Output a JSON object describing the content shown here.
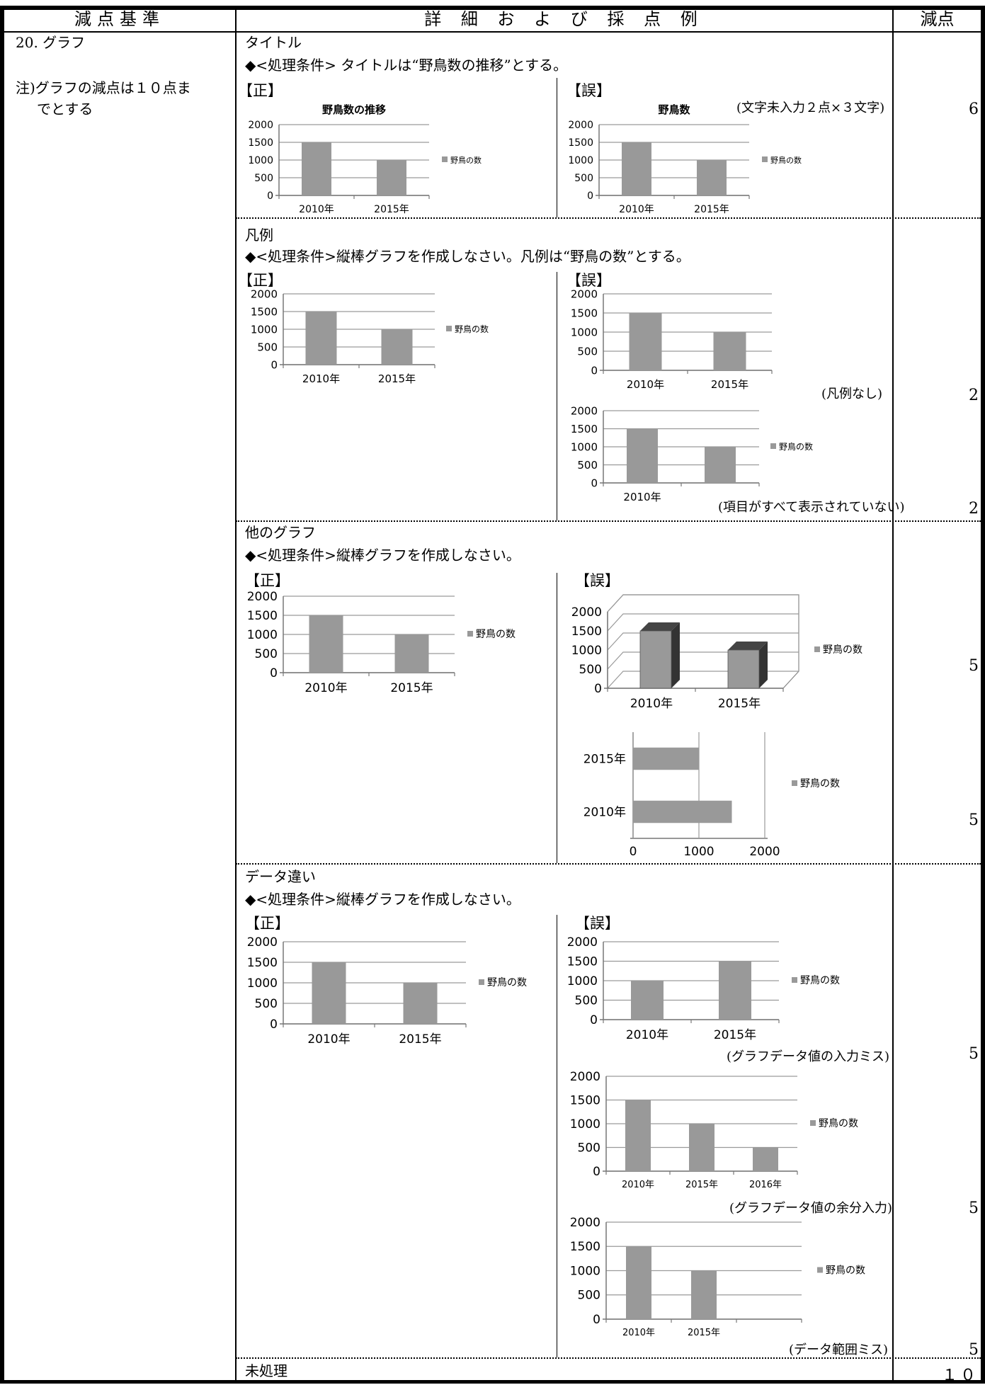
{
  "header": {
    "col1": "減点基準",
    "col2": "詳 細 お よ び 採 点 例",
    "col3": "減点"
  },
  "left": {
    "item": "20. グラフ",
    "note1": "注)グラフの減点は１０点ま",
    "note2": "でとする"
  },
  "labels": {
    "correct": "【正】",
    "wrong": "【誤】"
  },
  "sections": [
    {
      "title": "タイトル",
      "condition": "◆<処理条件> タイトルは“野鳥数の推移”とする。",
      "wrong_note": "(文字未入力２点×３文字)",
      "scores": [
        "6"
      ]
    },
    {
      "title": "凡例",
      "condition": "◆<処理条件>縦棒グラフを作成しなさい。凡例は“野鳥の数”とする。",
      "notes": [
        "(凡例なし)",
        "(項目がすべて表示されていない)"
      ],
      "scores": [
        "2",
        "2"
      ]
    },
    {
      "title": "他のグラフ",
      "condition": "◆<処理条件>縦棒グラフを作成しなさい。",
      "scores": [
        "5",
        "5"
      ]
    },
    {
      "title": "データ違い",
      "condition": "◆<処理条件>縦棒グラフを作成しなさい。",
      "notes": [
        "(グラフデータ値の入力ミス)",
        "(グラフデータ値の余分入力)",
        "(データ範囲ミス)"
      ],
      "scores": [
        "5",
        "5",
        "5"
      ]
    },
    {
      "title": "未処理",
      "scores": [
        "１０"
      ]
    }
  ],
  "chart_data": [
    {
      "id": "title-correct",
      "type": "bar",
      "title": "野鳥数の推移",
      "categories": [
        "2010年",
        "2015年"
      ],
      "series": [
        {
          "name": "野鳥の数",
          "values": [
            1500,
            1000
          ]
        }
      ],
      "ylim": [
        0,
        2000
      ],
      "yticks": [
        "2000",
        "1500",
        "1000",
        "500",
        "0"
      ],
      "legend": "right"
    },
    {
      "id": "title-wrong",
      "type": "bar",
      "title": "野鳥数",
      "categories": [
        "2010年",
        "2015年"
      ],
      "series": [
        {
          "name": "野鳥の数",
          "values": [
            1500,
            1000
          ]
        }
      ],
      "ylim": [
        0,
        2000
      ],
      "yticks": [
        "2000",
        "1500",
        "1000",
        "500",
        "0"
      ],
      "legend": "right"
    },
    {
      "id": "legend-correct",
      "type": "bar",
      "categories": [
        "2010年",
        "2015年"
      ],
      "series": [
        {
          "name": "野鳥の数",
          "values": [
            1500,
            1000
          ]
        }
      ],
      "ylim": [
        0,
        2000
      ],
      "yticks": [
        "2000",
        "1500",
        "1000",
        "500",
        "0"
      ],
      "legend": "right"
    },
    {
      "id": "legend-wrong-1",
      "type": "bar",
      "categories": [
        "2010年",
        "2015年"
      ],
      "series": [
        {
          "values": [
            1500,
            1000
          ]
        }
      ],
      "ylim": [
        0,
        2000
      ],
      "yticks": [
        "2000",
        "1500",
        "1000",
        "500",
        "0"
      ],
      "legend": "none"
    },
    {
      "id": "legend-wrong-2",
      "type": "bar",
      "categories": [
        "2010年",
        ""
      ],
      "series": [
        {
          "name": "野鳥の数",
          "values": [
            1500,
            1000
          ]
        }
      ],
      "ylim": [
        0,
        2000
      ],
      "yticks": [
        "2000",
        "1500",
        "1000",
        "500",
        "0"
      ],
      "legend": "right"
    },
    {
      "id": "other-correct",
      "type": "bar",
      "categories": [
        "2010年",
        "2015年"
      ],
      "series": [
        {
          "name": "野鳥の数",
          "values": [
            1500,
            1000
          ]
        }
      ],
      "ylim": [
        0,
        2000
      ],
      "yticks": [
        "2000",
        "1500",
        "1000",
        "500",
        "0"
      ],
      "legend": "right"
    },
    {
      "id": "other-wrong-3d",
      "type": "bar",
      "style": "3d",
      "categories": [
        "2010年",
        "2015年"
      ],
      "series": [
        {
          "name": "野鳥の数",
          "values": [
            1500,
            1000
          ]
        }
      ],
      "ylim": [
        0,
        2000
      ],
      "yticks": [
        "2000",
        "1500",
        "1000",
        "500",
        "0"
      ],
      "legend": "right"
    },
    {
      "id": "other-wrong-hbar",
      "type": "bar",
      "orientation": "horizontal",
      "categories": [
        "2010年",
        "2015年"
      ],
      "series": [
        {
          "name": "野鳥の数",
          "values": [
            1500,
            1000
          ]
        }
      ],
      "xlim": [
        0,
        2000
      ],
      "xticks": [
        "0",
        "1000",
        "2000"
      ],
      "legend": "right"
    },
    {
      "id": "data-correct",
      "type": "bar",
      "categories": [
        "2010年",
        "2015年"
      ],
      "series": [
        {
          "name": "野鳥の数",
          "values": [
            1500,
            1000
          ]
        }
      ],
      "ylim": [
        0,
        2000
      ],
      "yticks": [
        "2000",
        "1500",
        "1000",
        "500",
        "0"
      ],
      "legend": "right"
    },
    {
      "id": "data-wrong-1",
      "type": "bar",
      "categories": [
        "2010年",
        "2015年"
      ],
      "series": [
        {
          "name": "野鳥の数",
          "values": [
            1000,
            1500
          ]
        }
      ],
      "ylim": [
        0,
        2000
      ],
      "yticks": [
        "2000",
        "1500",
        "1000",
        "500",
        "0"
      ],
      "legend": "right"
    },
    {
      "id": "data-wrong-2",
      "type": "bar",
      "categories": [
        "2010年",
        "2015年",
        "2016年"
      ],
      "series": [
        {
          "name": "野鳥の数",
          "values": [
            1500,
            1000,
            500
          ]
        }
      ],
      "ylim": [
        0,
        2000
      ],
      "yticks": [
        "2000",
        "1500",
        "1000",
        "500",
        "0"
      ],
      "legend": "right"
    },
    {
      "id": "data-wrong-3",
      "type": "bar",
      "categories": [
        "2010年",
        "2015年",
        ""
      ],
      "series": [
        {
          "name": "野鳥の数",
          "values": [
            1500,
            1000,
            0
          ]
        }
      ],
      "ylim": [
        0,
        2000
      ],
      "yticks": [
        "2000",
        "1500",
        "1000",
        "500",
        "0"
      ],
      "legend": "right"
    }
  ]
}
